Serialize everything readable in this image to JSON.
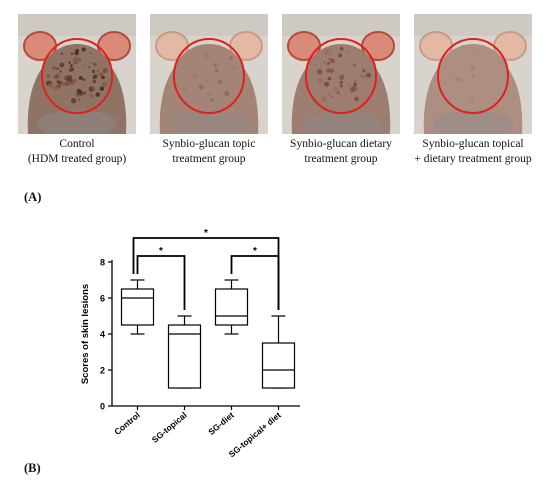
{
  "panel_a": {
    "label": "(A)",
    "groups": [
      {
        "caption": [
          "Control",
          "(HDM treated group)"
        ],
        "lesion": "severe"
      },
      {
        "caption": [
          "Synbio-glucan topic",
          "treatment group"
        ],
        "lesion": "mild"
      },
      {
        "caption": [
          "Synbio-glucan dietary",
          "treatment group"
        ],
        "lesion": "moderate"
      },
      {
        "caption": [
          "Synbio-glucan topical",
          "+ dietary treatment group"
        ],
        "lesion": "minimal"
      }
    ],
    "marker_color": "#e0201c"
  },
  "panel_b": {
    "label": "(B)"
  },
  "chart_data": {
    "type": "box",
    "categories": [
      "Control",
      "SG-topical",
      "SG-diet",
      "SG-topical+ diet"
    ],
    "ylabel": "Scores of skin lesions",
    "xlabel": "",
    "ylim": [
      0,
      8
    ],
    "yticks": [
      0,
      2,
      4,
      6,
      8
    ],
    "boxes": [
      {
        "min": 4,
        "q1": 4.5,
        "median": 6,
        "q3": 6.5,
        "max": 7
      },
      {
        "min": 1,
        "q1": 1,
        "median": 4,
        "q3": 4.5,
        "max": 5
      },
      {
        "min": 4,
        "q1": 4.5,
        "median": 5,
        "q3": 6.5,
        "max": 7
      },
      {
        "min": 1,
        "q1": 1,
        "median": 2,
        "q3": 3.5,
        "max": 5
      }
    ],
    "significance": [
      {
        "from": 0,
        "to": 1,
        "label": "*"
      },
      {
        "from": 2,
        "to": 3,
        "label": "*"
      },
      {
        "from": 0,
        "to": 3,
        "label": "*"
      }
    ],
    "grid": false
  }
}
